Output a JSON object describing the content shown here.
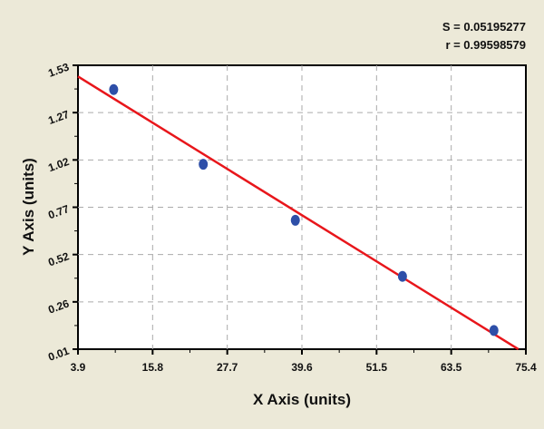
{
  "chart_data": {
    "type": "scatter",
    "xlabel": "X Axis (units)",
    "ylabel": "Y Axis (units)",
    "xlim": [
      3.9,
      75.4
    ],
    "ylim": [
      0.01,
      1.53
    ],
    "x_ticks": [
      "3.9",
      "15.8",
      "27.7",
      "39.6",
      "51.5",
      "63.5",
      "75.4"
    ],
    "y_ticks": [
      "0.01",
      "0.26",
      "0.52",
      "0.77",
      "1.02",
      "1.27",
      "1.53"
    ],
    "grid": true,
    "points": [
      {
        "x": 9.6,
        "y": 1.4
      },
      {
        "x": 23.9,
        "y": 1.0
      },
      {
        "x": 38.6,
        "y": 0.7
      },
      {
        "x": 55.7,
        "y": 0.4
      },
      {
        "x": 70.3,
        "y": 0.11
      }
    ],
    "fit_line": {
      "x": [
        3.9,
        74.2
      ],
      "y": [
        1.47,
        0.01
      ]
    },
    "annotations": [
      "S = 0.05195277",
      "r = 0.99598579"
    ],
    "colors": {
      "points": "#2e4fa8",
      "line": "#e8161b",
      "background": "#ece9d8"
    }
  }
}
